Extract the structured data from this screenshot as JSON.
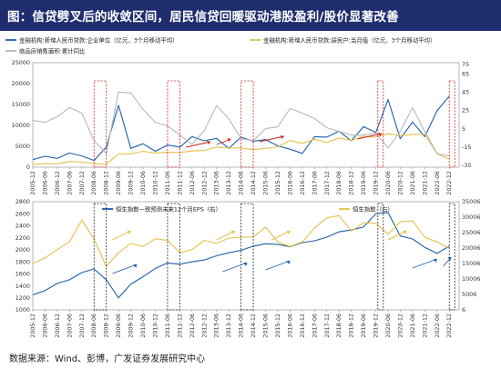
{
  "title": "图：信贷劈叉后的收敛区间，居民信贷回暖驱动港股盈利/股价显著改善",
  "source": "数据来源：Wind、彭博，广发证券发展研究中心",
  "colors": {
    "blue": "#1f5fa8",
    "gold": "#e6c04a",
    "gray": "#b8b8b8",
    "red": "#d22020",
    "header": "#1f2d6e"
  },
  "chart_data": [
    {
      "type": "line",
      "name": "top-chart",
      "x": [
        "2005-12",
        "2006-06",
        "2006-12",
        "2007-06",
        "2007-12",
        "2008-06",
        "2008-12",
        "2009-06",
        "2009-12",
        "2010-06",
        "2010-12",
        "2011-06",
        "2011-12",
        "2012-06",
        "2012-12",
        "2013-06",
        "2013-12",
        "2014-06",
        "2014-12",
        "2015-06",
        "2015-12",
        "2016-06",
        "2016-12",
        "2017-06",
        "2017-12",
        "2018-06",
        "2018-12",
        "2019-06",
        "2019-12",
        "2020-06",
        "2020-12",
        "2021-06",
        "2021-12",
        "2022-06",
        "2022-12"
      ],
      "xticks": [
        "2005-12",
        "2006-06",
        "2006-12",
        "2007-06",
        "2007-12",
        "2008-06",
        "2008-12",
        "2009-06",
        "2009-12",
        "2010-06",
        "2010-12",
        "2011-06",
        "2011-12",
        "2012-06",
        "2012-12",
        "2013-06",
        "2013-12",
        "2014-06",
        "2014-12",
        "2015-06",
        "2015-12",
        "2016-06",
        "2016-12",
        "2017-06",
        "2017-12",
        "2018-06",
        "2018-12",
        "2019-06",
        "2019-12",
        "2020-06",
        "2020-12",
        "2021-06",
        "2021-12",
        "2022-06",
        "2022-12"
      ],
      "yleft": {
        "ticks": [
          0,
          5000,
          10000,
          15000,
          20000,
          25000
        ],
        "range": [
          0,
          25000
        ]
      },
      "yright": {
        "ticks": [
          -35,
          -15,
          5,
          25,
          45,
          65
        ],
        "extra_tick": 75,
        "range": [
          -37,
          77
        ]
      },
      "legend": [
        "金融机构:新增人民币贷款:企业单位（亿元，3个月移动平均）",
        "金融机构:新增人民币贷款:居民户:当月值（亿元，3个月移动平均）",
        "商品房销售面积:累计同比"
      ],
      "series": [
        {
          "name": "金融机构:新增人民币贷款:企业单位（亿元，3个月移动平均）",
          "axis": "left",
          "color": "blue",
          "values": [
            1800,
            2600,
            2100,
            3400,
            2700,
            1600,
            4800,
            14800,
            4500,
            5600,
            3800,
            5300,
            4800,
            7300,
            6300,
            6900,
            4500,
            7200,
            6200,
            6600,
            5100,
            4300,
            3300,
            7300,
            7200,
            8600,
            6300,
            9700,
            8300,
            16200,
            6800,
            10800,
            7300,
            13500,
            17000
          ]
        },
        {
          "name": "金融机构:新增人民币贷款:居民户:当月值（亿元，3个月移动平均）",
          "axis": "left",
          "color": "gold",
          "values": [
            600,
            900,
            800,
            1400,
            1200,
            900,
            700,
            3200,
            3200,
            3800,
            3400,
            3600,
            3500,
            3900,
            4000,
            4800,
            4600,
            4600,
            4200,
            4500,
            4900,
            6400,
            5700,
            6700,
            5900,
            7000,
            6400,
            7400,
            7200,
            8000,
            7600,
            7800,
            7900,
            3200,
            1900
          ]
        },
        {
          "name": "商品房销售面积:累计同比",
          "axis": "right",
          "color": "gray",
          "values": [
            14,
            12,
            18,
            28,
            22,
            -8,
            -22,
            45,
            44,
            26,
            12,
            8,
            -2,
            -12,
            3,
            30,
            16,
            -6,
            -8,
            5,
            7,
            27,
            22,
            16,
            6,
            2,
            -2,
            -2,
            0,
            -16,
            2,
            28,
            2,
            -22,
            -25
          ]
        }
      ]
    },
    {
      "type": "line",
      "name": "bottom-chart",
      "x": [
        "2005-12",
        "2006-06",
        "2006-12",
        "2007-06",
        "2007-12",
        "2008-06",
        "2008-12",
        "2009-06",
        "2009-12",
        "2010-06",
        "2010-12",
        "2011-06",
        "2011-12",
        "2012-06",
        "2012-12",
        "2013-06",
        "2013-12",
        "2014-06",
        "2014-12",
        "2015-06",
        "2015-12",
        "2016-06",
        "2016-12",
        "2017-06",
        "2017-12",
        "2018-06",
        "2018-12",
        "2019-06",
        "2019-12",
        "2020-06",
        "2020-12",
        "2021-06",
        "2021-12",
        "2022-06",
        "2022-12"
      ],
      "xticks": [
        "2005-12",
        "2006-06",
        "2006-12",
        "2007-06",
        "2007-12",
        "2008-06",
        "2008-12",
        "2009-06",
        "2009-12",
        "2010-06",
        "2010-12",
        "2011-06",
        "2011-12",
        "2012-06",
        "2012-12",
        "2013-06",
        "2013-12",
        "2014-06",
        "2014-12",
        "2015-06",
        "2015-12",
        "2016-06",
        "2016-12",
        "2017-06",
        "2017-12",
        "2018-06",
        "2018-12",
        "2019-06",
        "2019-12",
        "2020-06",
        "2020-12",
        "2021-06",
        "2021-12",
        "2022-06",
        "2022-12"
      ],
      "yleft": {
        "ticks": [
          1000,
          1200,
          1400,
          1600,
          1800,
          2000,
          2200,
          2400,
          2600,
          2800
        ],
        "range": [
          1000,
          2800
        ]
      },
      "yright": {
        "ticks": [
          6,
          5006,
          10006,
          15006,
          20006,
          25006,
          30006,
          35006
        ],
        "range": [
          6,
          35006
        ]
      },
      "legend": [
        "恒生指数一致预测未来12个月EPS（右）",
        "恒生指数（右）"
      ],
      "series": [
        {
          "name": "恒生指数一致预测未来12个月EPS（右）",
          "axis": "left",
          "color": "blue",
          "values": [
            1250,
            1320,
            1440,
            1500,
            1620,
            1680,
            1500,
            1200,
            1430,
            1550,
            1690,
            1780,
            1760,
            1800,
            1830,
            1900,
            1950,
            1990,
            2060,
            2100,
            2090,
            2050,
            2120,
            2150,
            2210,
            2300,
            2330,
            2380,
            2600,
            2620,
            2230,
            2180,
            2040,
            1940,
            2060
          ]
        },
        {
          "name": "恒生指数（右）",
          "axis": "right",
          "color": "gold",
          "values": [
            15000,
            16800,
            19500,
            22000,
            29000,
            23000,
            14000,
            18500,
            21500,
            20500,
            23000,
            22500,
            18500,
            19500,
            22500,
            21500,
            23200,
            23500,
            23600,
            26800,
            22000,
            20500,
            22000,
            26500,
            29800,
            30500,
            25500,
            28200,
            28000,
            24500,
            28500,
            28800,
            23500,
            22000,
            20000
          ]
        }
      ]
    }
  ],
  "annotations": {
    "red_boxes_top": [
      [
        "2008-06",
        "2008-12"
      ],
      [
        "2011-06",
        "2011-12"
      ],
      [
        "2014-06",
        "2014-12"
      ],
      [
        "2020-01",
        "2020-03"
      ],
      [
        "2022-12",
        "2023-01"
      ]
    ],
    "red_arrows_top": [
      [
        "2012-03",
        "2013-03"
      ],
      [
        "2013-06",
        "2014-01"
      ],
      [
        "2015-03",
        "2016-03"
      ],
      [
        "2019-03",
        "2020-03"
      ]
    ],
    "black_boxes_bottom": [
      [
        "2008-06",
        "2008-12"
      ],
      [
        "2011-06",
        "2011-12"
      ],
      [
        "2014-06",
        "2014-12"
      ],
      [
        "2020-01",
        "2020-03"
      ],
      [
        "2022-12",
        "2023-01"
      ]
    ],
    "blue_arrows_bottom": [
      [
        "2009-03",
        "2010-03"
      ],
      [
        "2013-09",
        "2014-09"
      ],
      [
        "2015-06",
        "2016-06"
      ],
      [
        "2021-06",
        "2022-06"
      ],
      [
        "2022-09",
        "2023-01"
      ]
    ],
    "gold_arrows_bottom": [
      [
        "2009-03",
        "2009-12"
      ],
      [
        "2013-06",
        "2014-03"
      ],
      [
        "2015-09",
        "2016-06"
      ],
      [
        "2020-06",
        "2021-03"
      ]
    ]
  }
}
